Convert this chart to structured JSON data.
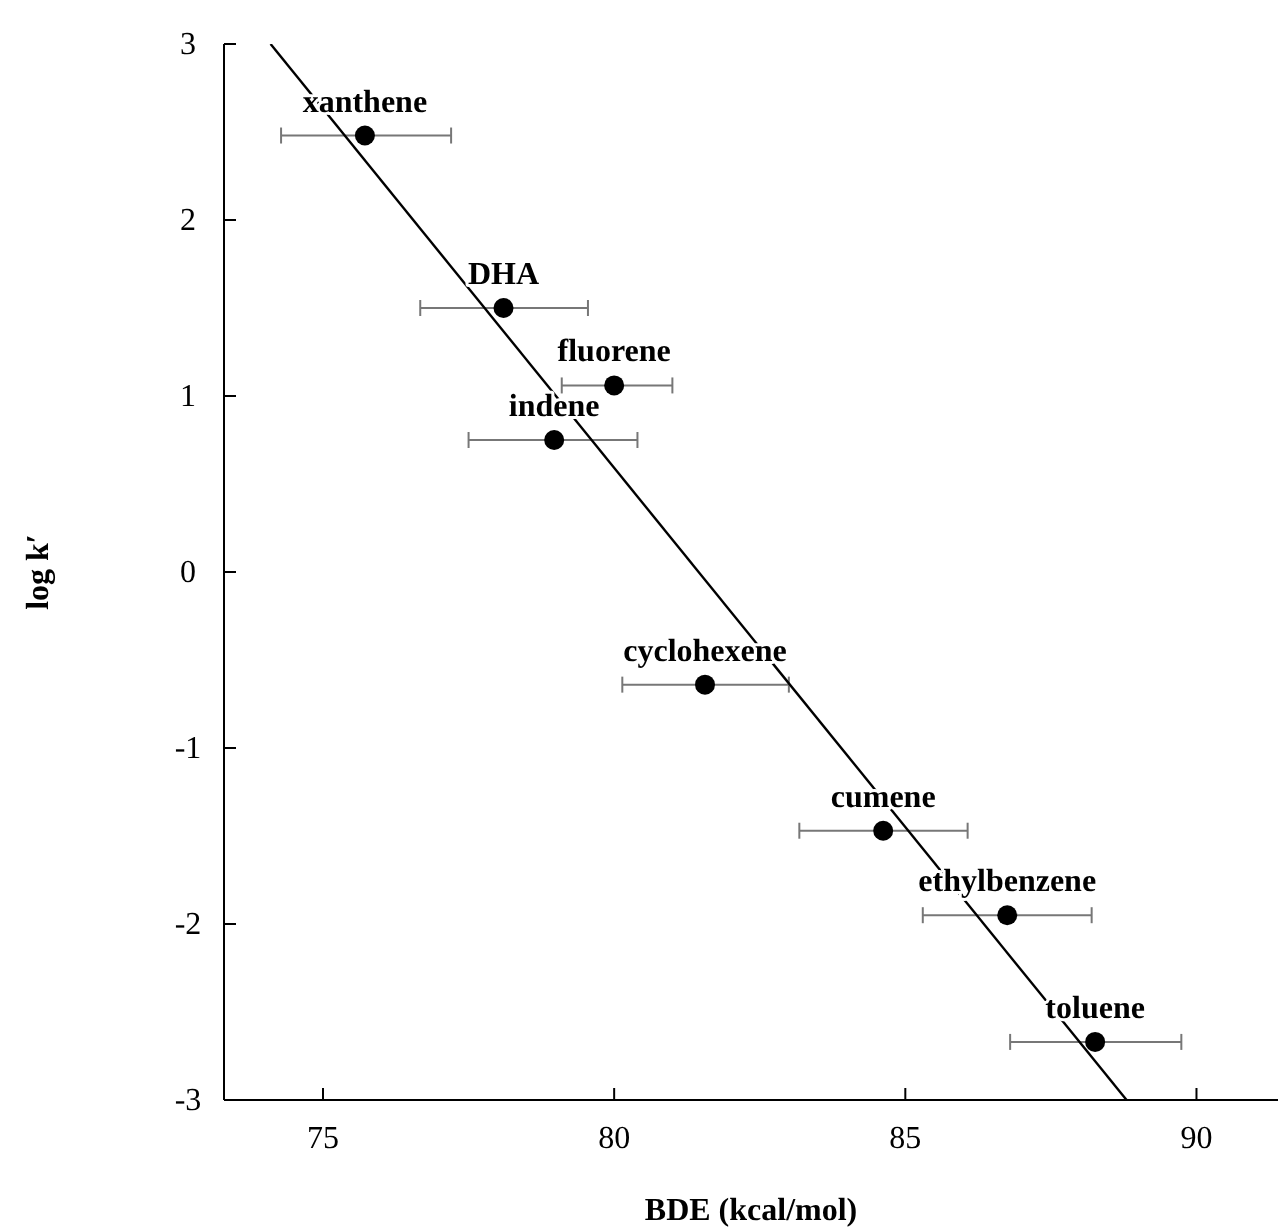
{
  "chart_data": {
    "type": "scatter",
    "xlabel": "BDE (kcal/mol)",
    "ylabel": "log k′",
    "xlim": [
      73.3,
      91.4
    ],
    "ylim": [
      -3,
      3
    ],
    "xticks": [
      75,
      80,
      85,
      90
    ],
    "yticks": [
      -3,
      -2,
      -1,
      0,
      1,
      2,
      3
    ],
    "grid": false,
    "series": [
      {
        "type": "scatter",
        "color": "#000000",
        "marker": "circle",
        "x": [
          75.72,
          78.1,
          80.0,
          78.97,
          81.56,
          84.62,
          86.75,
          88.26
        ],
        "values": [
          2.48,
          1.5,
          1.06,
          0.75,
          -0.64,
          -1.47,
          -1.95,
          -2.67
        ],
        "xerrors": [
          [
            74.28,
            77.2
          ],
          [
            76.67,
            79.55
          ],
          [
            79.1,
            81.0
          ],
          [
            77.5,
            80.4
          ],
          [
            80.14,
            83.0
          ],
          [
            83.18,
            86.07
          ],
          [
            85.3,
            88.2
          ],
          [
            86.8,
            89.74
          ]
        ]
      },
      {
        "type": "line",
        "color": "#000000",
        "line_style": "solid",
        "x": [
          74.1,
          88.8
        ],
        "values": [
          3,
          -3
        ]
      }
    ],
    "annotations": [
      {
        "text": "xanthene",
        "x": 75.72,
        "y": 2.48
      },
      {
        "text": "DHA",
        "x": 78.1,
        "y": 1.5
      },
      {
        "text": "fluorene",
        "x": 80.0,
        "y": 1.06
      },
      {
        "text": "indene",
        "x": 78.97,
        "y": 0.75
      },
      {
        "text": "cyclohexene",
        "x": 81.56,
        "y": -0.64
      },
      {
        "text": "cumene",
        "x": 84.62,
        "y": -1.47
      },
      {
        "text": "ethylbenzene",
        "x": 86.75,
        "y": -1.95
      },
      {
        "text": "toluene",
        "x": 88.26,
        "y": -2.67
      }
    ]
  }
}
